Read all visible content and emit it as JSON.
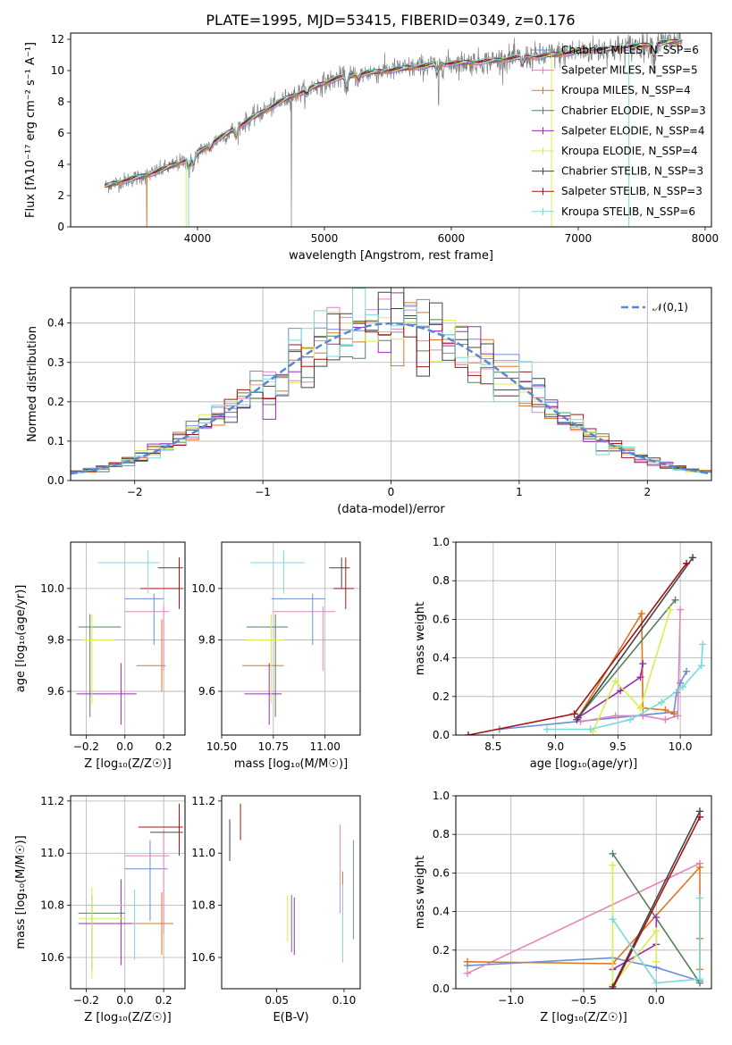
{
  "title": "PLATE=1995, MJD=53415, FIBERID=0349, z=0.176",
  "colors": [
    "#6b8ed6",
    "#e184bd",
    "#dd7722",
    "#56805a",
    "#9a2bb5",
    "#d6ee55",
    "#444444",
    "#a31515",
    "#7ad9d9"
  ],
  "chart_data": [
    {
      "id": "spectrum",
      "type": "line",
      "xlabel": "wavelength [Angstrom, rest frame]",
      "ylabel": "Flux [fλ10⁻¹⁷ erg cm⁻² s⁻¹ A⁻¹]",
      "xlim": [
        3000,
        8050
      ],
      "ylim": [
        0,
        12.4
      ],
      "xticks": [
        4000,
        5000,
        6000,
        7000,
        8000
      ],
      "yticks": [
        0,
        2,
        4,
        6,
        8,
        10,
        12
      ],
      "grid": false,
      "legend_position": "right",
      "series": [
        {
          "name": "Chabrier MILES, N_SSP=6"
        },
        {
          "name": "Salpeter MILES, N_SSP=5"
        },
        {
          "name": "Kroupa MILES, N_SSP=4"
        },
        {
          "name": "Chabrier ELODIE, N_SSP=3"
        },
        {
          "name": "Salpeter ELODIE, N_SSP=4"
        },
        {
          "name": "Kroupa ELODIE, N_SSP=4"
        },
        {
          "name": "Chabrier STELIB, N_SSP=3"
        },
        {
          "name": "Salpeter STELIB, N_SSP=3"
        },
        {
          "name": "Kroupa STELIB, N_SSP=6"
        }
      ],
      "data_color": "#808080",
      "continuum_anchors": {
        "x": [
          3270,
          3400,
          3600,
          3800,
          3950,
          4100,
          4300,
          4500,
          4700,
          4900,
          5100,
          5300,
          5500,
          5700,
          5900,
          6100,
          6300,
          6500,
          6700,
          6900,
          7100,
          7300,
          7500,
          7700,
          7820
        ],
        "y": [
          2.6,
          2.9,
          3.3,
          3.9,
          4.4,
          5.3,
          6.3,
          7.3,
          8.2,
          8.9,
          9.5,
          9.8,
          10.0,
          10.2,
          10.4,
          10.5,
          10.6,
          10.8,
          10.9,
          11.1,
          11.3,
          11.4,
          11.6,
          11.8,
          11.9
        ]
      }
    },
    {
      "id": "residuals",
      "type": "line",
      "xlabel": "(data-model)/error",
      "ylabel": "Normed distribution",
      "xlim": [
        -2.5,
        2.5
      ],
      "ylim": [
        0,
        0.49
      ],
      "xticks": [
        -2,
        -1,
        0,
        1,
        2
      ],
      "yticks": [
        0.0,
        0.1,
        0.2,
        0.3,
        0.4
      ],
      "grid": true,
      "legend_position": "top-right",
      "reference": {
        "name": "𝒩(0,1)",
        "mean": 0,
        "sigma": 1,
        "color": "#5b86d6"
      },
      "hist_bins": {
        "start": -2.5,
        "width": 0.1,
        "count": 50
      }
    },
    {
      "id": "age-vs-Z",
      "type": "scatter",
      "xlabel": "Z [log₁₀(Z/Z☉)]",
      "ylabel": "age  [log₁₀(age/yr)]",
      "xlim": [
        -0.28,
        0.31
      ],
      "ylim": [
        9.43,
        10.18
      ],
      "xticks": [
        -0.2,
        0.0,
        0.2
      ],
      "yticks": [
        9.6,
        9.8,
        10.0
      ],
      "grid": true,
      "points": [
        {
          "series": 0,
          "x": 0.15,
          "xerr": [
            0.15,
            0.05
          ],
          "y": 9.96,
          "yerr": [
            0.18,
            0.02
          ]
        },
        {
          "series": 1,
          "x": 0.2,
          "xerr": [
            0.2,
            0.03
          ],
          "y": 9.91,
          "yerr": [
            0.23,
            0.02
          ]
        },
        {
          "series": 2,
          "x": 0.19,
          "xerr": [
            0.13,
            0.02
          ],
          "y": 9.7,
          "yerr": [
            0.1,
            0.18
          ]
        },
        {
          "series": 3,
          "x": -0.18,
          "xerr": [
            0.06,
            0.16
          ],
          "y": 9.85,
          "yerr": [
            0.35,
            0.05
          ]
        },
        {
          "series": 4,
          "x": -0.02,
          "xerr": [
            0.23,
            0.08
          ],
          "y": 9.59,
          "yerr": [
            0.12,
            0.12
          ]
        },
        {
          "series": 5,
          "x": -0.17,
          "xerr": [
            0.05,
            0.12
          ],
          "y": 9.8,
          "yerr": [
            0.25,
            0.1
          ]
        },
        {
          "series": 6,
          "x": 0.28,
          "xerr": [
            0.11,
            0.02
          ],
          "y": 10.08,
          "yerr": [
            0.08,
            0.04
          ]
        },
        {
          "series": 7,
          "x": 0.28,
          "xerr": [
            0.2,
            0.02
          ],
          "y": 10.0,
          "yerr": [
            0.08,
            0.12
          ]
        },
        {
          "series": 8,
          "x": 0.12,
          "xerr": [
            0.26,
            0.06
          ],
          "y": 10.1,
          "yerr": [
            0.12,
            0.05
          ]
        }
      ]
    },
    {
      "id": "age-vs-mass",
      "type": "scatter",
      "xlabel": "mass [log₁₀(M/M☉)]",
      "ylabel": "",
      "xlim": [
        10.5,
        11.17
      ],
      "ylim": [
        9.43,
        10.18
      ],
      "xticks": [
        10.5,
        10.75,
        11.0
      ],
      "yticks": [
        9.6,
        9.8,
        10.0
      ],
      "grid": true,
      "points": [
        {
          "series": 0,
          "x": 10.94,
          "xerr": [
            0.2,
            0.06
          ],
          "y": 9.96,
          "yerr": [
            0.18,
            0.02
          ]
        },
        {
          "series": 1,
          "x": 10.99,
          "xerr": [
            0.24,
            0.06
          ],
          "y": 9.91,
          "yerr": [
            0.23,
            0.02
          ]
        },
        {
          "series": 2,
          "x": 10.74,
          "xerr": [
            0.14,
            0.06
          ],
          "y": 9.7,
          "yerr": [
            0.1,
            0.18
          ]
        },
        {
          "series": 3,
          "x": 10.76,
          "xerr": [
            0.14,
            0.06
          ],
          "y": 9.85,
          "yerr": [
            0.35,
            0.05
          ]
        },
        {
          "series": 4,
          "x": 10.73,
          "xerr": [
            0.12,
            0.06
          ],
          "y": 9.59,
          "yerr": [
            0.12,
            0.12
          ]
        },
        {
          "series": 5,
          "x": 10.74,
          "xerr": [
            0.12,
            0.06
          ],
          "y": 9.8,
          "yerr": [
            0.25,
            0.1
          ]
        },
        {
          "series": 6,
          "x": 11.08,
          "xerr": [
            0.06,
            0.04
          ],
          "y": 10.08,
          "yerr": [
            0.08,
            0.04
          ]
        },
        {
          "series": 7,
          "x": 11.1,
          "xerr": [
            0.06,
            0.04
          ],
          "y": 10.0,
          "yerr": [
            0.08,
            0.12
          ]
        },
        {
          "series": 8,
          "x": 10.8,
          "xerr": [
            0.16,
            0.1
          ],
          "y": 10.1,
          "yerr": [
            0.12,
            0.05
          ]
        }
      ]
    },
    {
      "id": "mass-weight-vs-age",
      "type": "line",
      "xlabel": "age  [log₁₀(age/yr)]",
      "ylabel": "mass weight",
      "xlim": [
        8.2,
        10.25
      ],
      "ylim": [
        0,
        1.0
      ],
      "xticks": [
        8.5,
        9.0,
        9.5,
        10.0
      ],
      "yticks": [
        0.0,
        0.2,
        0.4,
        0.6,
        0.8,
        1.0
      ],
      "grid": true,
      "series": [
        {
          "series": 0,
          "x": [
            8.55,
            9.95,
            9.97,
            10.0,
            10.05
          ],
          "y": [
            0.03,
            0.12,
            0.22,
            0.27,
            0.33
          ]
        },
        {
          "series": 1,
          "x": [
            9.2,
            9.48,
            9.7,
            9.88,
            9.98,
            10.0
          ],
          "y": [
            0.07,
            0.1,
            0.1,
            0.08,
            0.1,
            0.65
          ]
        },
        {
          "series": 2,
          "x": [
            9.18,
            9.69,
            9.7,
            9.88,
            9.95
          ],
          "y": [
            0.09,
            0.63,
            0.14,
            0.13,
            0.11
          ]
        },
        {
          "series": 3,
          "x": [
            9.18,
            9.96
          ],
          "y": [
            0.09,
            0.7
          ]
        },
        {
          "series": 4,
          "x": [
            9.18,
            9.52,
            9.68,
            9.7
          ],
          "y": [
            0.09,
            0.23,
            0.3,
            0.37
          ]
        },
        {
          "series": 5,
          "x": [
            9.3,
            9.48,
            9.68,
            9.92
          ],
          "y": [
            0.02,
            0.28,
            0.14,
            0.65
          ]
        },
        {
          "series": 6,
          "x": [
            9.17,
            10.1
          ],
          "y": [
            0.08,
            0.92
          ]
        },
        {
          "series": 7,
          "x": [
            8.3,
            9.15,
            10.05
          ],
          "y": [
            0.0,
            0.11,
            0.89
          ]
        },
        {
          "series": 8,
          "x": [
            8.93,
            9.28,
            9.6,
            9.85,
            10.02,
            10.17,
            10.18
          ],
          "y": [
            0.03,
            0.03,
            0.08,
            0.17,
            0.25,
            0.36,
            0.47
          ]
        }
      ]
    },
    {
      "id": "mass-vs-Z",
      "type": "scatter",
      "xlabel": "Z [log₁₀(Z/Z☉)]",
      "ylabel": "mass [log₁₀(M/M☉)]",
      "xlim": [
        -0.28,
        0.31
      ],
      "ylim": [
        10.48,
        11.22
      ],
      "xticks": [
        -0.2,
        0.0,
        0.2
      ],
      "yticks": [
        10.6,
        10.8,
        11.0,
        11.2
      ],
      "grid": true,
      "points": [
        {
          "series": 0,
          "x": 0.13,
          "xerr": [
            0.13,
            0.09
          ],
          "y": 10.94,
          "yerr": [
            0.2,
            0.11
          ]
        },
        {
          "series": 1,
          "x": 0.2,
          "xerr": [
            0.2,
            0.03
          ],
          "y": 10.99,
          "yerr": [
            0.3,
            0.1
          ]
        },
        {
          "series": 2,
          "x": 0.19,
          "xerr": [
            0.16,
            0.06
          ],
          "y": 10.73,
          "yerr": [
            0.12,
            0.12
          ]
        },
        {
          "series": 3,
          "x": -0.17,
          "xerr": [
            0.07,
            0.17
          ],
          "y": 10.77,
          "yerr": [
            0.22,
            0.07
          ]
        },
        {
          "series": 4,
          "x": -0.02,
          "xerr": [
            0.22,
            0.06
          ],
          "y": 10.73,
          "yerr": [
            0.16,
            0.17
          ]
        },
        {
          "series": 5,
          "x": -0.17,
          "xerr": [
            0.07,
            0.17
          ],
          "y": 10.75,
          "yerr": [
            0.23,
            0.12
          ]
        },
        {
          "series": 6,
          "x": 0.28,
          "xerr": [
            0.15,
            0.02
          ],
          "y": 11.08,
          "yerr": [
            0.09,
            0.04
          ]
        },
        {
          "series": 7,
          "x": 0.28,
          "xerr": [
            0.21,
            0.02
          ],
          "y": 11.1,
          "yerr": [
            0.09,
            0.09
          ]
        },
        {
          "series": 8,
          "x": 0.05,
          "xerr": [
            0.25,
            0.05
          ],
          "y": 10.8,
          "yerr": [
            0.21,
            0.06
          ]
        }
      ]
    },
    {
      "id": "mass-vs-EBV",
      "type": "scatter",
      "xlabel": "E(B-V)",
      "ylabel": "",
      "xlim": [
        0.009,
        0.112
      ],
      "ylim": [
        10.48,
        11.22
      ],
      "xticks": [
        0.05,
        0.1
      ],
      "yticks": [
        10.6,
        10.8,
        11.0,
        11.2
      ],
      "grid": false,
      "points": [
        {
          "series": 0,
          "x": 0.107,
          "y": 10.94,
          "yerr": [
            0.27,
            0.11
          ]
        },
        {
          "series": 1,
          "x": 0.097,
          "y": 10.99,
          "yerr": [
            0.22,
            0.12
          ]
        },
        {
          "series": 2,
          "x": 0.099,
          "y": 10.88,
          "yerr": [
            0.12,
            0.05
          ]
        },
        {
          "series": 3,
          "x": 0.061,
          "y": 10.77,
          "yerr": [
            0.15,
            0.07
          ]
        },
        {
          "series": 4,
          "x": 0.063,
          "y": 10.73,
          "yerr": [
            0.12,
            0.1
          ]
        },
        {
          "series": 5,
          "x": 0.058,
          "y": 10.76,
          "yerr": [
            0.1,
            0.08
          ]
        },
        {
          "series": 6,
          "x": 0.015,
          "y": 11.08,
          "yerr": [
            0.11,
            0.05
          ]
        },
        {
          "series": 7,
          "x": 0.023,
          "y": 11.12,
          "yerr": [
            0.07,
            0.07
          ]
        },
        {
          "series": 8,
          "x": 0.099,
          "y": 10.8,
          "yerr": [
            0.22,
            0.08
          ]
        }
      ]
    },
    {
      "id": "mass-weight-vs-Z",
      "type": "line",
      "xlabel": "Z [log₁₀(Z/Z☉)]",
      "ylabel": "mass weight",
      "xlim": [
        -1.38,
        0.38
      ],
      "ylim": [
        0,
        1.0
      ],
      "xticks": [
        -1.0,
        -0.5,
        0.0
      ],
      "yticks": [
        0.0,
        0.2,
        0.4,
        0.6,
        0.8,
        1.0
      ],
      "grid": true,
      "series": [
        {
          "series": 0,
          "x": [
            -1.3,
            -0.3,
            0.0,
            0.3
          ],
          "y": [
            0.12,
            0.16,
            0.11,
            0.04
          ]
        },
        {
          "series": 1,
          "x": [
            -1.3,
            0.3
          ],
          "y": [
            0.08,
            0.65
          ]
        },
        {
          "series": 2,
          "x": [
            -1.3,
            -0.3,
            0.3,
            0.3,
            0.3
          ],
          "y": [
            0.14,
            0.13,
            0.63,
            0.26,
            0.1
          ]
        },
        {
          "series": 3,
          "x": [
            -0.3,
            0.3
          ],
          "y": [
            0.7,
            0.03
          ]
        },
        {
          "series": 4,
          "x": [
            -0.3,
            0.0,
            0.0
          ],
          "y": [
            0.1,
            0.23,
            0.37
          ]
        },
        {
          "series": 5,
          "x": [
            -0.3,
            -0.3,
            0.0,
            0.0
          ],
          "y": [
            0.64,
            0.02,
            0.3,
            0.14
          ]
        },
        {
          "series": 6,
          "x": [
            -0.3,
            0.3
          ],
          "y": [
            0.01,
            0.92
          ]
        },
        {
          "series": 7,
          "x": [
            -0.3,
            0.3
          ],
          "y": [
            0.0,
            0.89
          ]
        },
        {
          "series": 8,
          "x": [
            -0.3,
            0.0,
            0.3,
            0.3
          ],
          "y": [
            0.36,
            0.03,
            0.05,
            0.47
          ]
        }
      ]
    }
  ]
}
